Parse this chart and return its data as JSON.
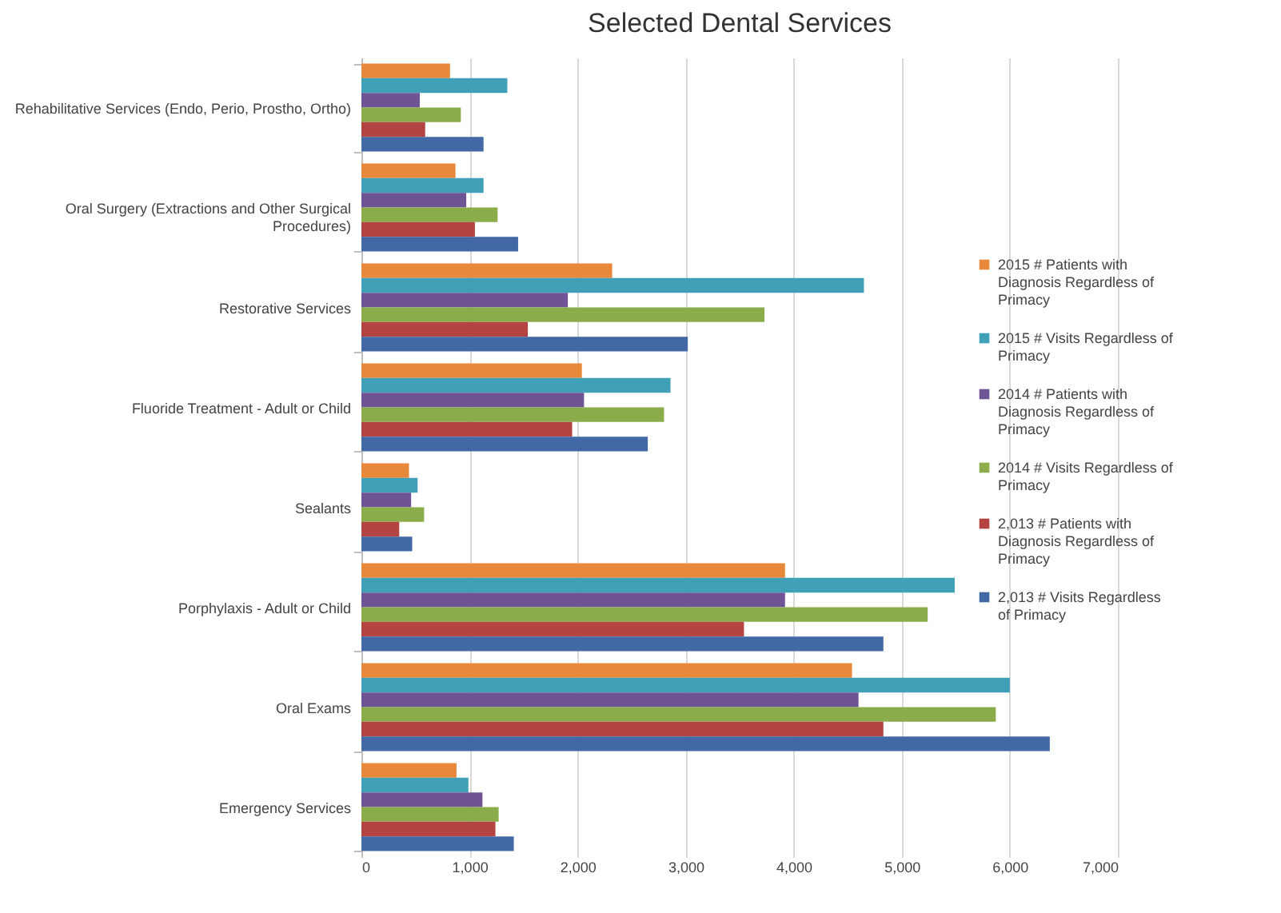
{
  "chart_data": {
    "type": "bar",
    "orientation": "horizontal",
    "title": "Selected Dental Services",
    "categories": [
      "Rehabilitative Services (Endo, Perio, Prostho, Ortho)",
      "Oral Surgery (Extractions and Other Surgical Procedures)",
      "Restorative Services",
      "Fluoride Treatment - Adult or Child",
      "Sealants",
      "Porphylaxis - Adult or Child",
      "Oral Exams",
      "Emergency Services"
    ],
    "series": [
      {
        "name": "2015 # Patients with Diagnosis Regardless of Primacy",
        "color": "#e8883a",
        "values": [
          820,
          870,
          2320,
          2040,
          440,
          3920,
          4540,
          880
        ]
      },
      {
        "name": "2015 # Visits Regardless of Primacy",
        "color": "#3fa0b8",
        "values": [
          1350,
          1130,
          4650,
          2860,
          520,
          5490,
          6000,
          990
        ]
      },
      {
        "name": "2014 # Patients with Diagnosis Regardless of Primacy",
        "color": "#6f5495",
        "values": [
          540,
          970,
          1910,
          2060,
          460,
          3920,
          4600,
          1120
        ]
      },
      {
        "name": "2014 # Visits Regardless of Primacy",
        "color": "#8bac4a",
        "values": [
          920,
          1260,
          3730,
          2800,
          580,
          5240,
          5870,
          1270
        ]
      },
      {
        "name": "2,013  # Patients with Diagnosis Regardless of Primacy",
        "color": "#b44442",
        "values": [
          590,
          1050,
          1540,
          1950,
          350,
          3540,
          4830,
          1240
        ]
      },
      {
        "name": "2,013  # Visits Regardless of Primacy",
        "color": "#4269a6",
        "values": [
          1130,
          1450,
          3020,
          2650,
          470,
          4830,
          6370,
          1410
        ]
      }
    ],
    "xlim": [
      0,
      7000
    ],
    "xticks": [
      0,
      {
        "value": 1000,
        "label": "1,000"
      },
      {
        "value": 2000,
        "label": "2,000"
      },
      {
        "value": 3000,
        "label": "3,000"
      },
      {
        "value": 4000,
        "label": "4,000"
      },
      {
        "value": 5000,
        "label": "5,000"
      },
      {
        "value": 6000,
        "label": "6,000"
      },
      {
        "value": 7000,
        "label": "7,000"
      }
    ],
    "grid": "x",
    "legend": "right"
  }
}
